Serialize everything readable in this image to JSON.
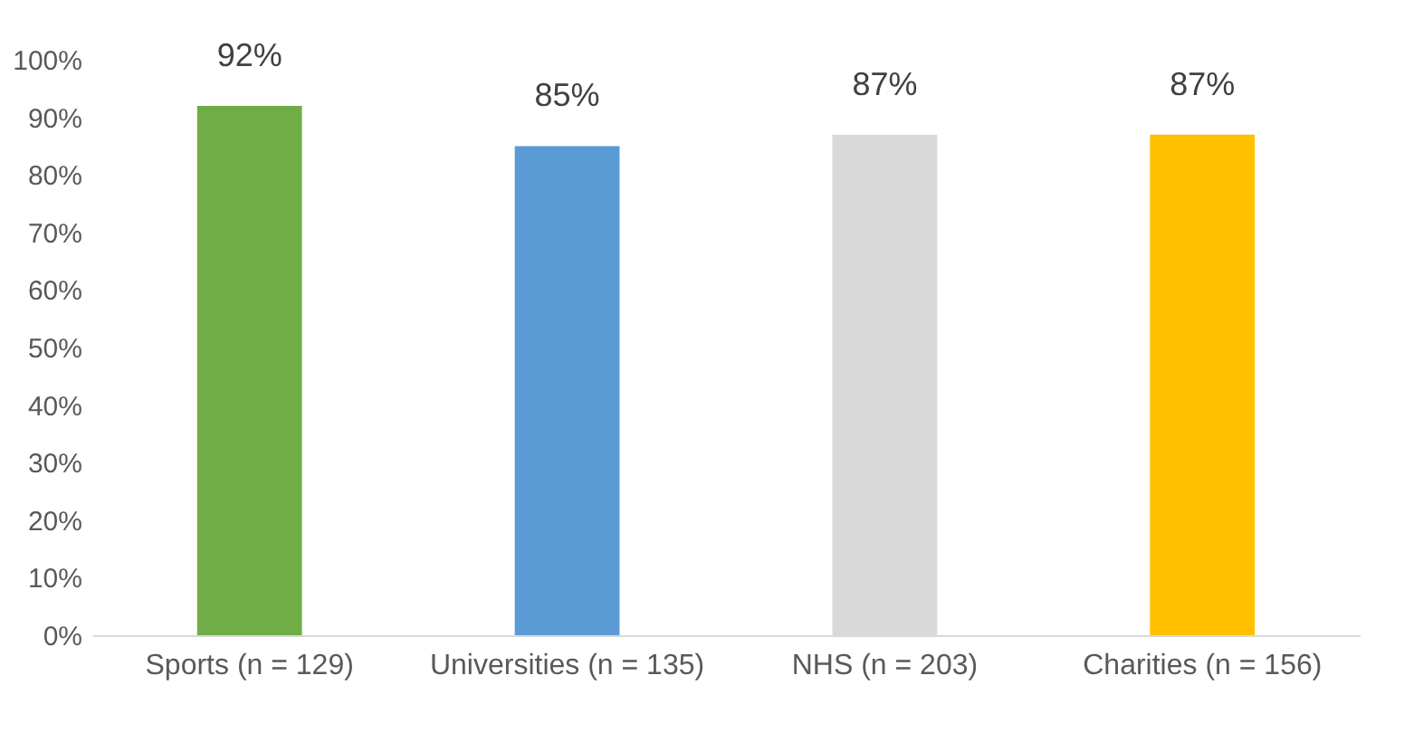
{
  "chart_data": {
    "type": "bar",
    "categories": [
      "Sports (n = 129)",
      "Universities (n = 135)",
      "NHS (n = 203)",
      "Charities (n = 156)"
    ],
    "values": [
      92,
      85,
      87,
      87
    ],
    "colors": [
      "#70ad47",
      "#5b9bd5",
      "#d9d9d9",
      "#ffc000"
    ],
    "value_labels": [
      "92%",
      "85%",
      "87%",
      "87%"
    ],
    "ylim": [
      0,
      100
    ],
    "yticks": [
      {
        "value": 0,
        "label": "0%"
      },
      {
        "value": 10,
        "label": "10%"
      },
      {
        "value": 20,
        "label": "20%"
      },
      {
        "value": 30,
        "label": "30%"
      },
      {
        "value": 40,
        "label": "40%"
      },
      {
        "value": 50,
        "label": "50%"
      },
      {
        "value": 60,
        "label": "60%"
      },
      {
        "value": 70,
        "label": "70%"
      },
      {
        "value": 80,
        "label": "80%"
      },
      {
        "value": 90,
        "label": "90%"
      },
      {
        "value": 100,
        "label": "100%"
      }
    ],
    "grid": false,
    "legend": false
  }
}
